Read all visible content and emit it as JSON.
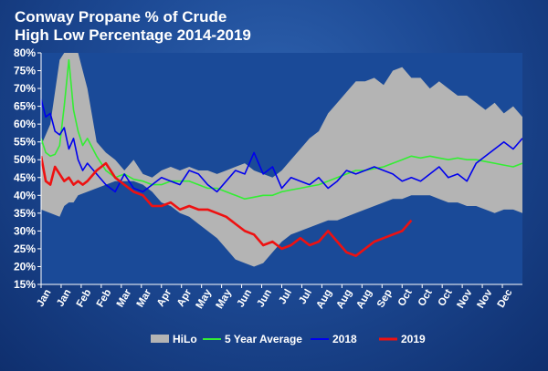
{
  "header": {
    "title_line1": "Conway Propane % of Crude",
    "title_line2": "High Low Percentage 2014-2019"
  },
  "colors": {
    "background": "#1d4a95",
    "plot_background": "#1a4a98",
    "hilo_band": "#b4b4b4",
    "avg5": "#33ee33",
    "y2018": "#0000ee",
    "y2019": "#ee1111",
    "text": "#ffffff"
  },
  "chart_data": {
    "type": "line",
    "title": "Conway Propane % of Crude",
    "subtitle": "High Low Percentage 2014-2019",
    "x_unit": "week of year",
    "x_range": [
      0,
      52
    ],
    "ylim": [
      15,
      80
    ],
    "y_ticks": [
      15,
      20,
      25,
      30,
      35,
      40,
      45,
      50,
      55,
      60,
      65,
      70,
      75,
      80
    ],
    "y_tick_labels": [
      "15%",
      "20%",
      "25%",
      "30%",
      "35%",
      "40%",
      "45%",
      "50%",
      "55%",
      "60%",
      "65%",
      "70%",
      "75%",
      "80%"
    ],
    "x_tick_labels": [
      "Jan",
      "Jan",
      "Feb",
      "Feb",
      "Mar",
      "Mar",
      "Apr",
      "Apr",
      "May",
      "May",
      "Jun",
      "Jun",
      "Jul",
      "Jul",
      "Aug",
      "Aug",
      "Aug",
      "Sep",
      "Oct",
      "Oct",
      "Oct",
      "Nov",
      "Nov",
      "Dec"
    ],
    "grid": false,
    "legend_position": "bottom",
    "band": {
      "name": "HiLo",
      "x": [
        0,
        1,
        2,
        2.5,
        3,
        3.5,
        4,
        5,
        6,
        7,
        8,
        9,
        10,
        11,
        12,
        13,
        14,
        15,
        16,
        17,
        18,
        19,
        20,
        21,
        22,
        23,
        24,
        25,
        26,
        27,
        28,
        29,
        30,
        31,
        32,
        33,
        34,
        35,
        36,
        37,
        38,
        39,
        40,
        41,
        42,
        43,
        44,
        45,
        46,
        47,
        48,
        49,
        50,
        51,
        52
      ],
      "high": [
        54,
        60,
        78,
        80,
        80,
        80,
        80,
        70,
        55,
        52,
        50,
        47,
        50,
        46,
        45,
        47,
        48,
        47,
        48,
        47,
        47,
        46,
        47,
        48,
        49,
        47,
        46,
        45,
        47,
        50,
        53,
        56,
        58,
        63,
        66,
        69,
        72,
        72,
        73,
        71,
        75,
        76,
        73,
        73,
        70,
        72,
        70,
        68,
        68,
        66,
        64,
        66,
        63,
        65,
        62
      ],
      "low": [
        36,
        35,
        34,
        37,
        38,
        38,
        40,
        41,
        42,
        43,
        44,
        44,
        44,
        43,
        41,
        38,
        37,
        35,
        34,
        32,
        30,
        28,
        25,
        22,
        21,
        20,
        21,
        24,
        27,
        29,
        30,
        31,
        32,
        33,
        33,
        34,
        35,
        36,
        37,
        38,
        39,
        39,
        40,
        40,
        40,
        39,
        38,
        38,
        37,
        37,
        36,
        35,
        36,
        36,
        35
      ]
    },
    "series": [
      {
        "name": "5 Year Average",
        "x": [
          0,
          0.5,
          1,
          1.5,
          2,
          2.5,
          3,
          3.5,
          4,
          4.5,
          5,
          6,
          7,
          8,
          9,
          10,
          11,
          12,
          13,
          14,
          15,
          16,
          17,
          18,
          19,
          20,
          21,
          22,
          23,
          24,
          25,
          26,
          27,
          28,
          29,
          30,
          31,
          32,
          33,
          34,
          35,
          36,
          37,
          38,
          39,
          40,
          41,
          42,
          43,
          44,
          45,
          46,
          47,
          48,
          49,
          50,
          51,
          52
        ],
        "y": [
          56,
          52,
          51,
          51.5,
          54,
          65,
          78,
          64,
          58,
          54,
          56,
          51,
          47,
          45,
          46,
          44.5,
          44,
          43,
          43,
          44,
          44,
          44,
          43,
          42,
          42,
          41,
          40,
          39,
          39.5,
          40,
          40,
          41,
          41.5,
          42,
          42.5,
          43,
          44,
          45,
          46,
          47,
          47,
          47.5,
          48,
          49,
          50,
          51,
          50.5,
          51,
          50.5,
          50,
          50.5,
          50,
          50,
          49.5,
          49,
          48.5,
          48,
          49
        ]
      },
      {
        "name": "2018",
        "x": [
          0,
          0.5,
          1,
          1.5,
          2,
          2.5,
          3,
          3.5,
          4,
          4.5,
          5,
          6,
          7,
          8,
          9,
          10,
          11,
          12,
          13,
          14,
          15,
          16,
          17,
          18,
          19,
          20,
          21,
          22,
          23,
          24,
          25,
          26,
          27,
          28,
          29,
          30,
          31,
          32,
          33,
          34,
          35,
          36,
          37,
          38,
          39,
          40,
          41,
          42,
          43,
          44,
          45,
          46,
          47,
          48,
          49,
          50,
          51,
          52
        ],
        "y": [
          67,
          62,
          63,
          58,
          57,
          59,
          53,
          56,
          50,
          47,
          49,
          46,
          43,
          41,
          46,
          42,
          41,
          43,
          45,
          44,
          43,
          47,
          46,
          43,
          41,
          44,
          47,
          46,
          52,
          46,
          48,
          42,
          45,
          44,
          43,
          45,
          42,
          44,
          47,
          46,
          47,
          48,
          47,
          46,
          44,
          45,
          44,
          46,
          48,
          45,
          46,
          44,
          49,
          51,
          53,
          55,
          53,
          56
        ]
      },
      {
        "name": "2019",
        "x": [
          0,
          0.5,
          1,
          1.5,
          2,
          2.5,
          3,
          3.5,
          4,
          4.5,
          5,
          6,
          7,
          8,
          9,
          10,
          11,
          12,
          13,
          14,
          15,
          16,
          17,
          18,
          19,
          20,
          21,
          22,
          23,
          24,
          25,
          26,
          27,
          28,
          29,
          30,
          31,
          32,
          33,
          34,
          35,
          36,
          37,
          38,
          39,
          40
        ],
        "y": [
          51,
          44,
          43,
          48,
          46,
          44,
          45,
          43,
          44,
          43,
          44,
          47,
          49,
          45,
          43,
          41,
          40,
          37,
          37,
          38,
          36,
          37,
          36,
          36,
          35,
          34,
          32,
          30,
          29,
          26,
          27,
          25,
          26,
          28,
          26,
          27,
          30,
          27,
          24,
          23,
          25,
          27,
          28,
          29,
          30,
          33
        ]
      }
    ]
  }
}
